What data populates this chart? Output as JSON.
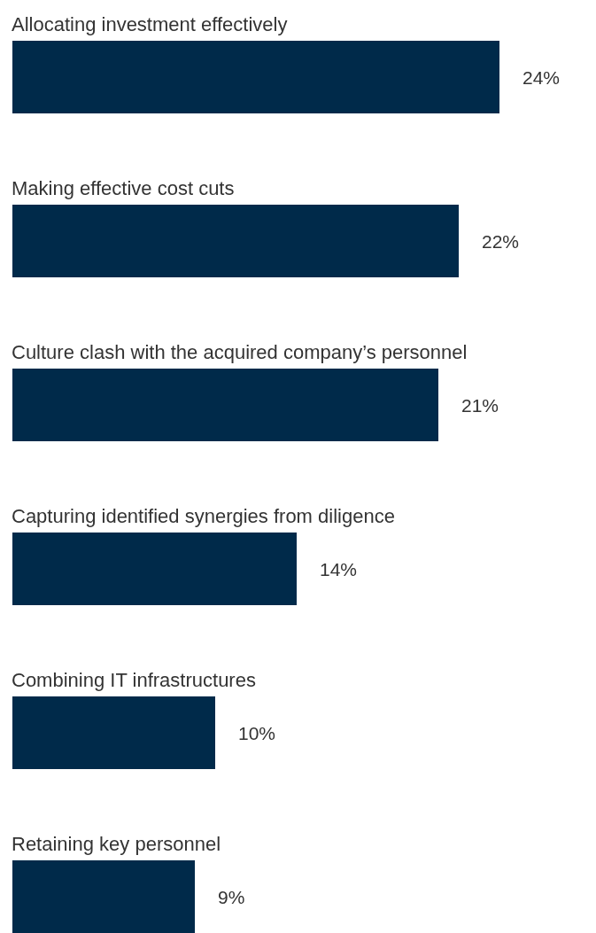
{
  "chart_data": {
    "type": "bar",
    "orientation": "horizontal",
    "categories": [
      "Allocating investment effectively",
      "Making effective cost cuts",
      "Culture clash with the acquired company’s personnel",
      "Capturing identified synergies from diligence",
      "Combining IT infrastructures",
      "Retaining key personnel"
    ],
    "values": [
      24,
      22,
      21,
      14,
      10,
      9
    ],
    "value_labels": [
      "24%",
      "22%",
      "21%",
      "14%",
      "10%",
      "9%"
    ],
    "color": "#002a4a"
  }
}
